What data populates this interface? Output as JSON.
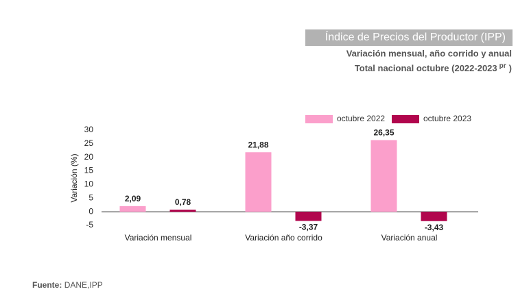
{
  "chart_data": {
    "type": "bar",
    "title": "Índice de Precios del Productor (IPP)",
    "subtitle": "Variación mensual, año corrido y anual",
    "subtitle_2": "Total nacional octubre (2022-2023",
    "subtitle_2_sup": "pr",
    "subtitle_2_end": ")",
    "y_label": "Variación (%)",
    "categories": [
      "Variación mensual",
      "Variación año corrido",
      "Variación anual"
    ],
    "series": [
      {
        "name": "octubre 2022",
        "color": "#fb9fcb",
        "values": [
          2.09,
          21.88,
          26.35
        ],
        "value_labels": [
          "2,09",
          "21,88",
          "26,35"
        ]
      },
      {
        "name": "octubre 2023",
        "color": "#b1064d",
        "values": [
          0.78,
          -3.37,
          -3.43
        ],
        "value_labels": [
          "0,78",
          "-3,37",
          "-3,43"
        ]
      }
    ],
    "ylim": [
      -5,
      30
    ],
    "yticks": [
      -5,
      0,
      5,
      10,
      15,
      20,
      25,
      30
    ],
    "grid": false,
    "legend": "top",
    "source_label": "Fuente:",
    "source": "DANE,IPP"
  }
}
